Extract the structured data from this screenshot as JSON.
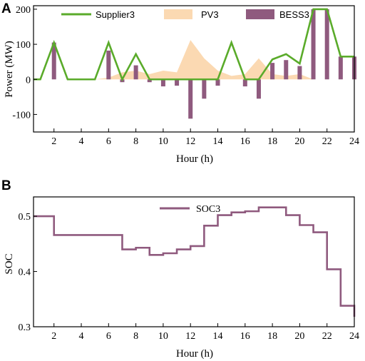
{
  "chart_data": [
    {
      "panel": "A",
      "type": "line",
      "xlabel": "Hour (h)",
      "ylabel": "Power (MW)",
      "xlim": [
        0.5,
        24
      ],
      "ylim": [
        -150,
        210
      ],
      "xticks": [
        2,
        4,
        6,
        8,
        10,
        12,
        14,
        16,
        18,
        20,
        22,
        24
      ],
      "yticks": [
        -100,
        0,
        100,
        200
      ],
      "legend_position": "top",
      "x": [
        1,
        2,
        3,
        4,
        5,
        6,
        7,
        8,
        9,
        10,
        11,
        12,
        13,
        14,
        15,
        16,
        17,
        18,
        19,
        20,
        21,
        22,
        23,
        24
      ],
      "series": [
        {
          "name": "Supplier3",
          "kind": "line",
          "color": "#5aab2a",
          "values": [
            0,
            105,
            0,
            0,
            0,
            105,
            0,
            72,
            0,
            0,
            0,
            0,
            0,
            0,
            105,
            0,
            0,
            57,
            72,
            45,
            200,
            200,
            65,
            65
          ]
        },
        {
          "name": "PV3",
          "kind": "area",
          "color": "#fbd9b2",
          "values": [
            0,
            0,
            0,
            0,
            0,
            5,
            20,
            25,
            15,
            25,
            20,
            112,
            60,
            25,
            10,
            15,
            60,
            15,
            10,
            15,
            0,
            0,
            0,
            0
          ]
        },
        {
          "name": "BESS3",
          "kind": "bar",
          "color": "#8f5a7e",
          "values": [
            0,
            105,
            0,
            0,
            0,
            82,
            -8,
            40,
            -8,
            -20,
            -18,
            -112,
            -55,
            -18,
            0,
            -20,
            -55,
            47,
            55,
            38,
            200,
            200,
            65,
            65
          ]
        }
      ]
    },
    {
      "panel": "B",
      "type": "line",
      "xlabel": "Hour (h)",
      "ylabel": "SOC",
      "xlim": [
        0.5,
        24
      ],
      "ylim": [
        0.3,
        0.535
      ],
      "xticks": [
        2,
        4,
        6,
        8,
        10,
        12,
        14,
        16,
        18,
        20,
        22,
        24
      ],
      "yticks": [
        0.3,
        0.4,
        0.5
      ],
      "legend_position": "top-center",
      "step": true,
      "x": [
        0.5,
        1,
        2,
        3,
        4,
        5,
        6,
        7,
        8,
        9,
        10,
        11,
        12,
        13,
        14,
        15,
        16,
        17,
        18,
        19,
        20,
        21,
        22,
        23,
        24
      ],
      "series": [
        {
          "name": "SOC3",
          "color": "#8f5a7e",
          "values": [
            0.5,
            0.5,
            0.466,
            0.466,
            0.466,
            0.466,
            0.466,
            0.44,
            0.443,
            0.43,
            0.433,
            0.44,
            0.446,
            0.483,
            0.502,
            0.507,
            0.509,
            0.516,
            0.516,
            0.502,
            0.484,
            0.471,
            0.404,
            0.338,
            0.318
          ]
        }
      ]
    }
  ]
}
